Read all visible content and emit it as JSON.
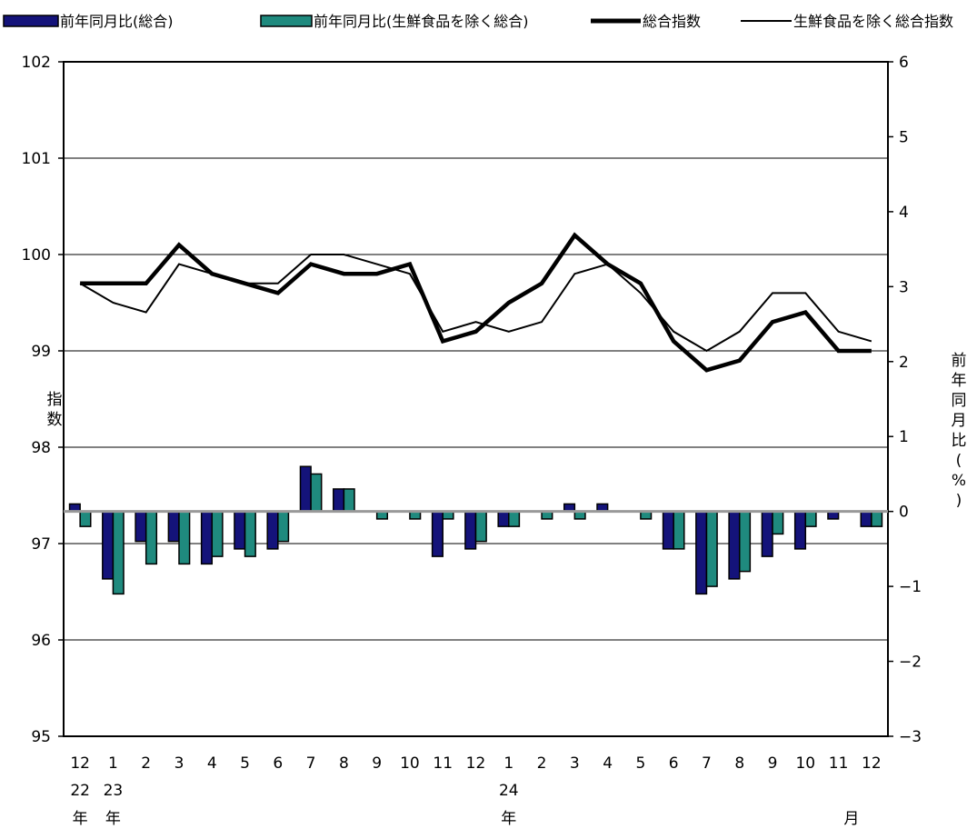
{
  "chart_data": {
    "type": "bar+line",
    "legend": [
      {
        "label": "前年同月比(総合)",
        "color": "#14137a",
        "kind": "bar"
      },
      {
        "label": "前年同月比(生鮮食品を除く総合)",
        "color": "#1f8a7e",
        "kind": "bar"
      },
      {
        "label": "総合指数",
        "color": "#000000",
        "kind": "thick-line"
      },
      {
        "label": "生鮮食品を除く総合指数",
        "color": "#000000",
        "kind": "thin-line"
      }
    ],
    "left_axis": {
      "label": "指数",
      "min": 95,
      "max": 102,
      "ticks": [
        "102",
        "101",
        "100",
        "99",
        "98",
        "97",
        "96",
        "95"
      ]
    },
    "right_axis": {
      "label": "前年同月比(%)",
      "min": -3,
      "max": 6,
      "ticks": [
        "6",
        "5",
        "4",
        "3",
        "2",
        "1",
        "0",
        "−1",
        "−2",
        "−3"
      ]
    },
    "x_months": [
      "12",
      "1",
      "2",
      "3",
      "4",
      "5",
      "6",
      "7",
      "8",
      "9",
      "10",
      "11",
      "12",
      "1",
      "2",
      "3",
      "4",
      "5",
      "6",
      "7",
      "8",
      "9",
      "10",
      "11",
      "12"
    ],
    "x_year_labels": [
      {
        "index": 0,
        "year": "22",
        "suffix": "年"
      },
      {
        "index": 1,
        "year": "23",
        "suffix": "年"
      },
      {
        "index": 13,
        "year": "24",
        "suffix": "年"
      }
    ],
    "x_unit": "月",
    "series": [
      {
        "name": "総合指数",
        "axis": "left",
        "values": [
          99.7,
          99.7,
          99.7,
          100.1,
          99.8,
          99.7,
          99.6,
          99.9,
          99.8,
          99.8,
          99.9,
          99.1,
          99.2,
          99.5,
          99.7,
          100.2,
          99.9,
          99.7,
          99.1,
          98.8,
          98.9,
          99.3,
          99.4,
          99.0,
          99.0
        ]
      },
      {
        "name": "生鮮食品を除く総合指数",
        "axis": "left",
        "values": [
          99.7,
          99.5,
          99.4,
          99.9,
          99.8,
          99.7,
          99.7,
          100.0,
          100.0,
          99.9,
          99.8,
          99.2,
          99.3,
          99.2,
          99.3,
          99.8,
          99.9,
          99.6,
          99.2,
          99.0,
          99.2,
          99.6,
          99.6,
          99.2,
          99.1
        ]
      },
      {
        "name": "前年同月比(総合)",
        "axis": "right",
        "values": [
          0.1,
          -0.9,
          -0.4,
          -0.4,
          -0.7,
          -0.5,
          -0.5,
          0.6,
          0.3,
          0.0,
          0.0,
          -0.6,
          -0.5,
          -0.2,
          0.0,
          0.1,
          0.1,
          0.0,
          -0.5,
          -1.1,
          -0.9,
          -0.6,
          -0.5,
          -0.1,
          -0.2
        ]
      },
      {
        "name": "前年同月比(生鮮食品を除く総合)",
        "axis": "right",
        "values": [
          -0.2,
          -1.1,
          -0.7,
          -0.7,
          -0.6,
          -0.6,
          -0.4,
          0.5,
          0.3,
          -0.1,
          -0.1,
          -0.1,
          -0.4,
          -0.2,
          -0.1,
          -0.1,
          0.0,
          -0.1,
          -0.5,
          -1.0,
          -0.8,
          -0.3,
          -0.2,
          0.0,
          -0.2
        ]
      }
    ]
  }
}
